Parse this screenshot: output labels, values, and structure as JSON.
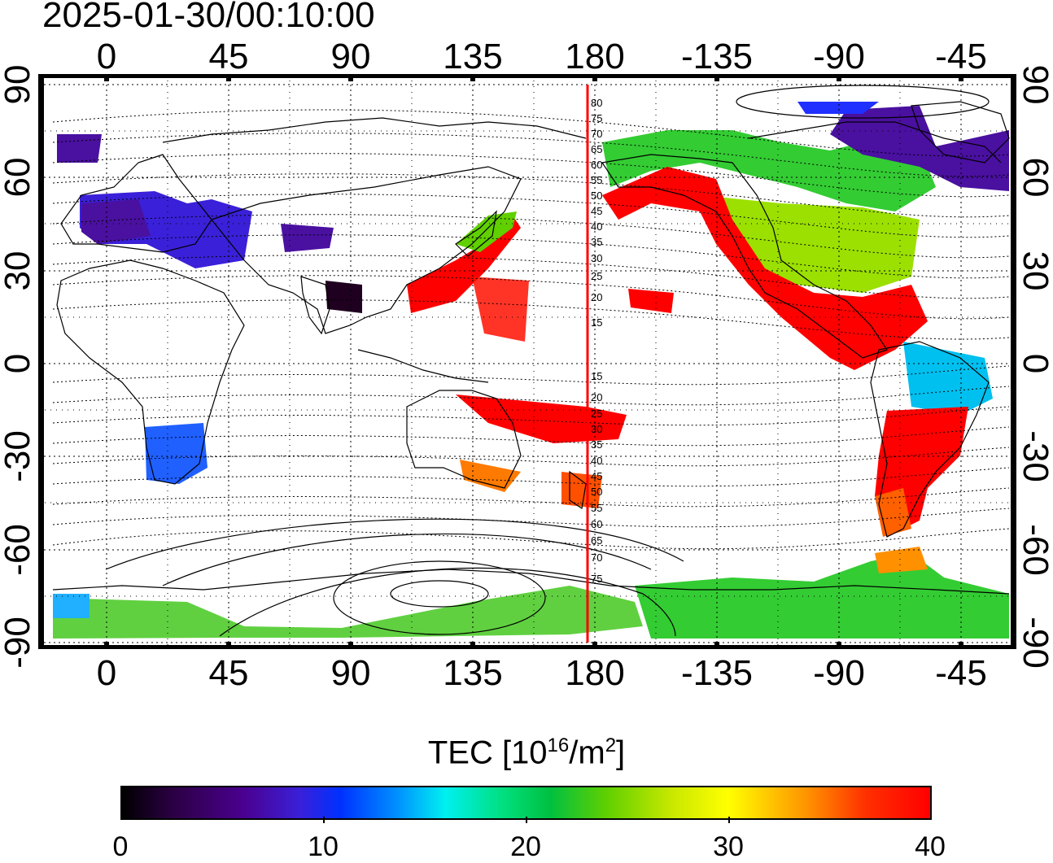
{
  "title": "2025-01-30/00:10:00",
  "top_lon_labels": [
    "0",
    "45",
    "90",
    "135",
    "180",
    "-135",
    "-90",
    "-45"
  ],
  "bottom_lon_labels": [
    "0",
    "45",
    "90",
    "135",
    "180",
    "-135",
    "-90",
    "-45"
  ],
  "left_lat_labels": [
    "90",
    "60",
    "30",
    "0",
    "-30",
    "-60",
    "-90"
  ],
  "right_lat_labels": [
    "90",
    "60",
    "30",
    "0",
    "-30",
    "-60",
    "-90"
  ],
  "mlat_labels_north": [
    "80",
    "75",
    "70",
    "65",
    "60",
    "55",
    "50",
    "45",
    "40",
    "35",
    "30",
    "25",
    "20",
    "15"
  ],
  "mlat_labels_south": [
    "15",
    "20",
    "25",
    "30",
    "35",
    "40",
    "45",
    "50",
    "55",
    "60",
    "65",
    "70",
    "75"
  ],
  "colorbar": {
    "title_prefix": "TEC  [10",
    "title_sup1": "16",
    "title_mid": "/m",
    "title_sup2": "2",
    "title_suffix": "]",
    "min": 0,
    "max": 40,
    "ticks": [
      "0",
      "10",
      "20",
      "30",
      "40"
    ]
  },
  "colors": {
    "terminator_line": "#ff0000",
    "high_tec": "#ff0000",
    "mid_tec": "#33cc33",
    "low_tec": "#3a20d8"
  }
}
